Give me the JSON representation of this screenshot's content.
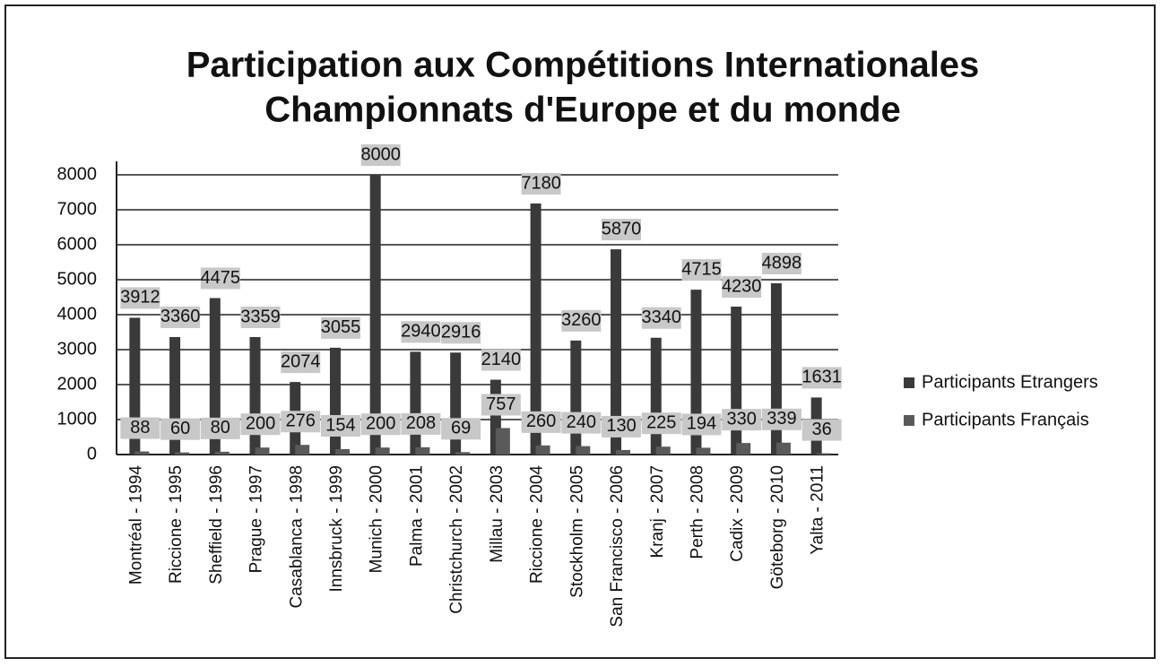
{
  "chart_data": {
    "type": "bar",
    "title": "Participation aux Compétitions Internationales",
    "subtitle": "Championnats d'Europe et du monde",
    "categories": [
      "Montréal - 1994",
      "Riccione - 1995",
      "Sheffield - 1996",
      "Prague - 1997",
      "Casablanca - 1998",
      "Innsbruck - 1999",
      "Munich - 2000",
      "Palma - 2001",
      "Christchurch - 2002",
      "Millau - 2003",
      "Riccione - 2004",
      "Stockholm - 2005",
      "San Francisco - 2006",
      "Kranj - 2007",
      "Perth - 2008",
      "Cadix - 2009",
      "Göteborg - 2010",
      "Yalta - 2011"
    ],
    "series": [
      {
        "name": "Participants Etrangers",
        "color": "#3a3a3a",
        "values": [
          3912,
          3360,
          4475,
          3359,
          2074,
          3055,
          8000,
          2940,
          2916,
          2140,
          7180,
          3260,
          5870,
          3340,
          4715,
          4230,
          4898,
          1631
        ]
      },
      {
        "name": "Participants Français",
        "color": "#5a5a5a",
        "values": [
          88,
          60,
          80,
          200,
          276,
          154,
          200,
          208,
          69,
          757,
          260,
          240,
          130,
          225,
          194,
          330,
          339,
          36
        ]
      }
    ],
    "ylim": [
      0,
      8000
    ],
    "yticks": [
      0,
      1000,
      2000,
      3000,
      4000,
      5000,
      6000,
      7000,
      8000
    ],
    "grid": true,
    "legend": "right"
  }
}
